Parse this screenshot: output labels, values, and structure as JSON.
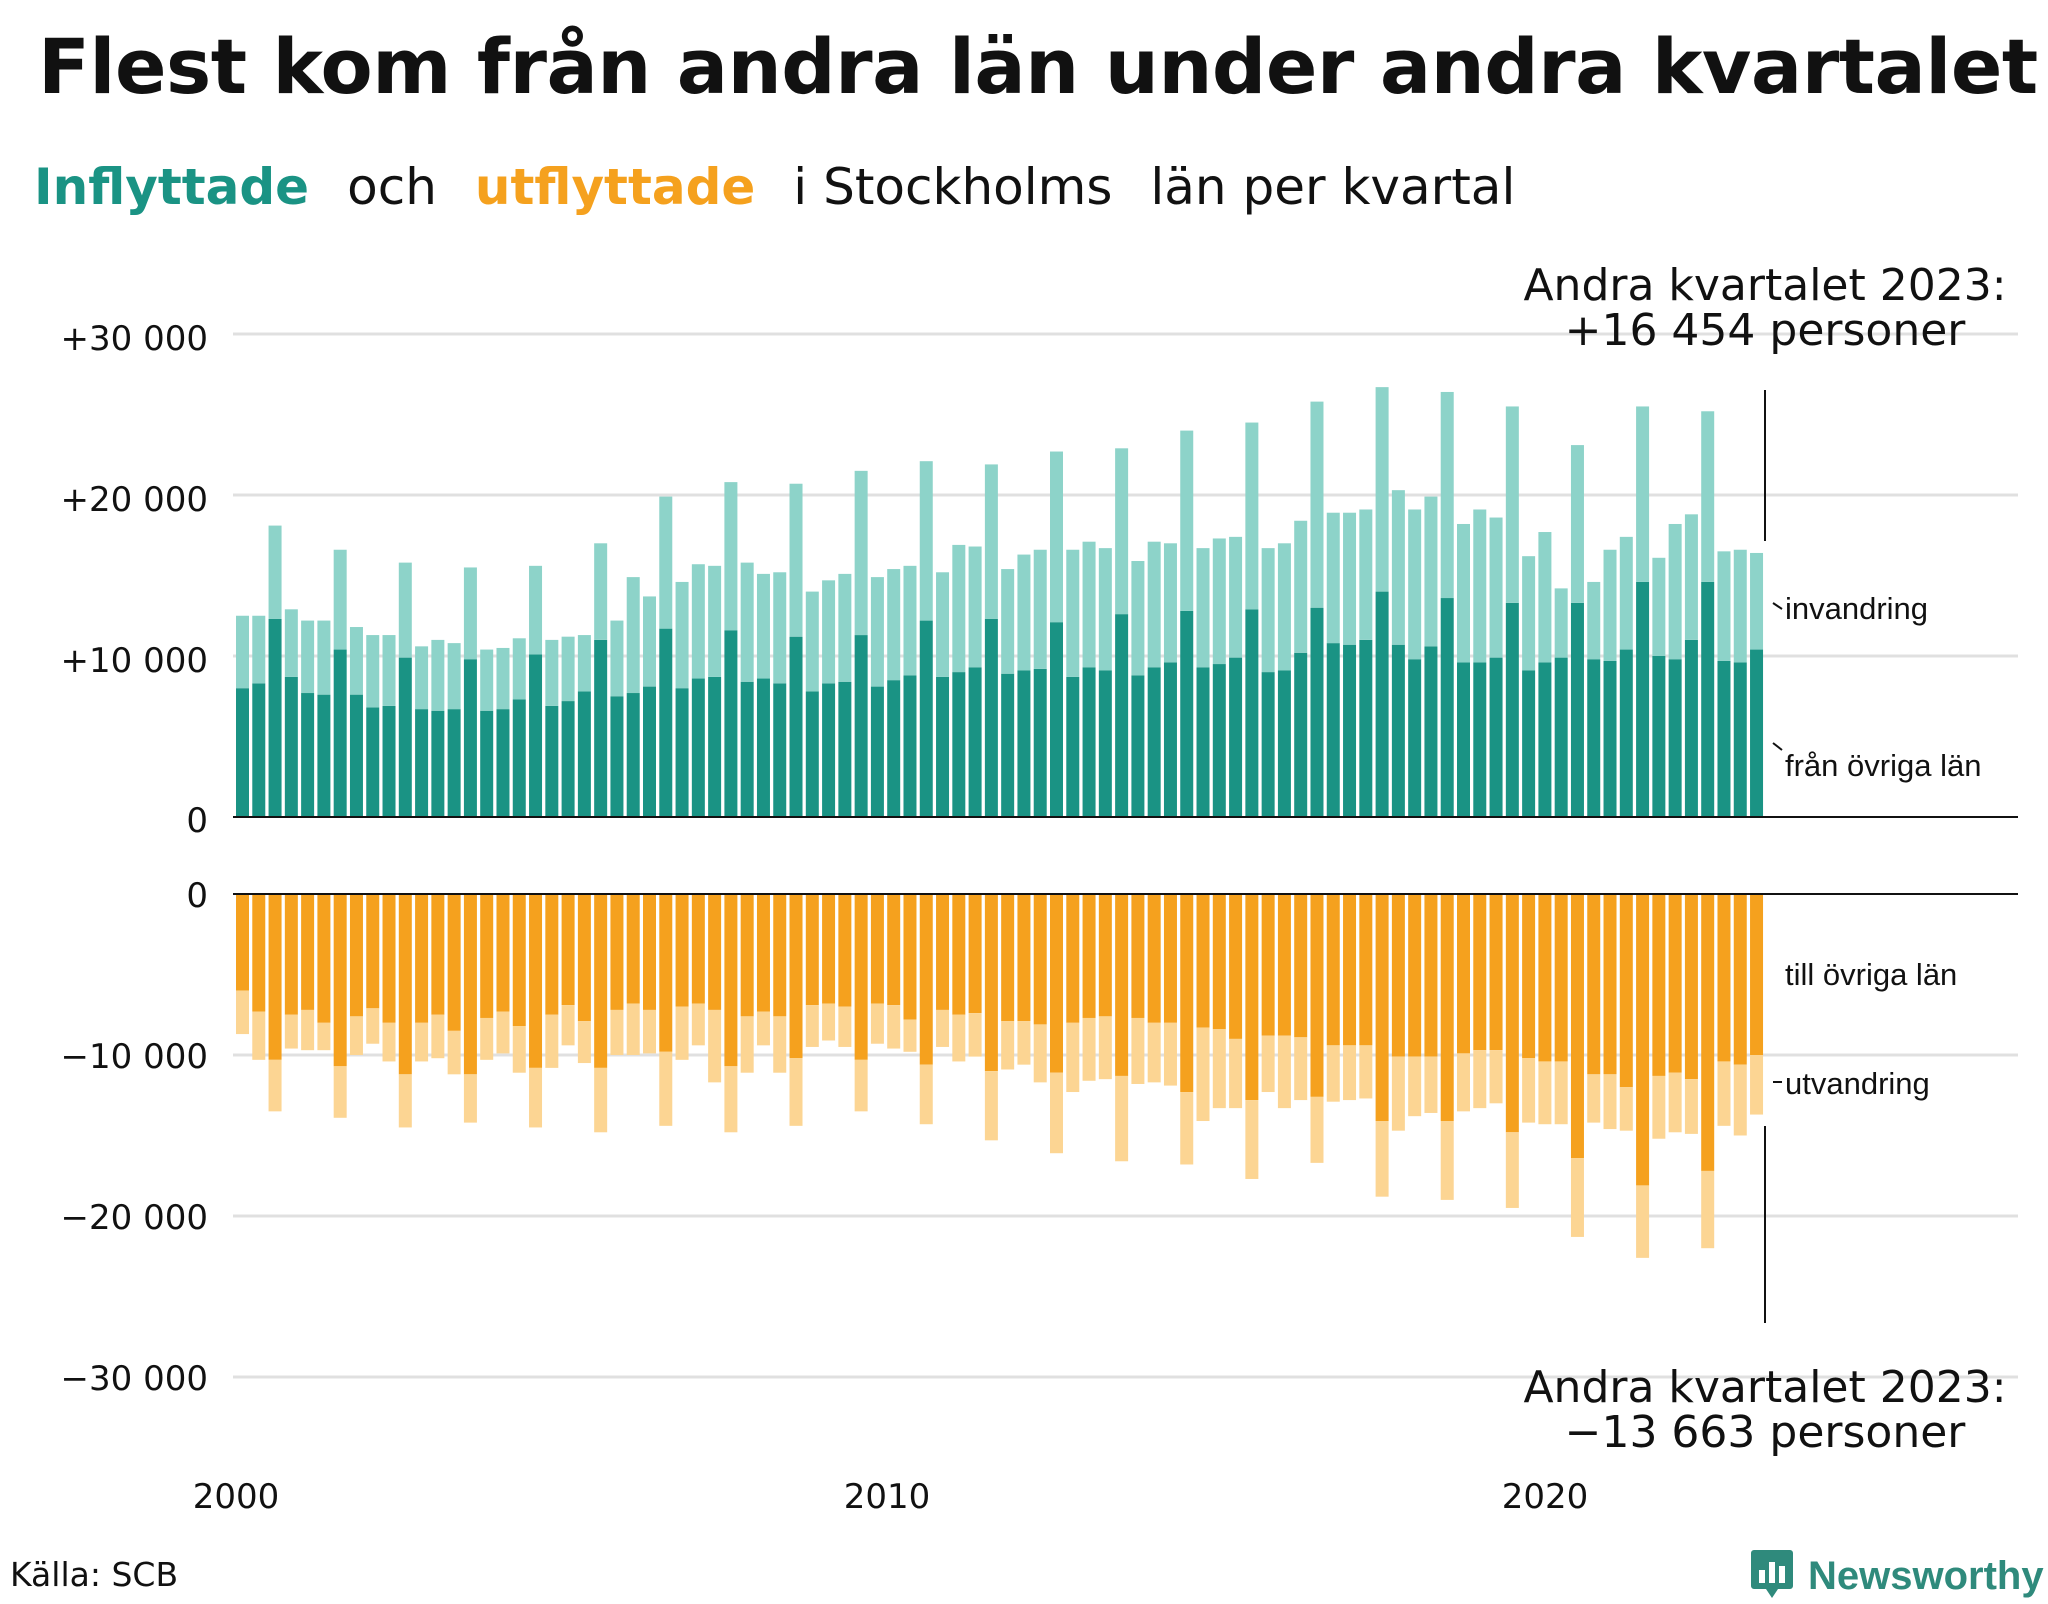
{
  "title": "Flest kom från andra län under andra kvartalet",
  "subtitle": {
    "part1": "Inflyttade",
    "part2": "och",
    "part3": "utflyttade",
    "part4": "i Stockholms",
    "part5": "län per kvartal"
  },
  "annotations": {
    "top_line1": "Andra kvartalet 2023:",
    "top_line2": "+16 454 personer",
    "bottom_line1": "Andra kvartalet 2023:",
    "bottom_line2": "−13 663 personer"
  },
  "source": "Källa: SCB",
  "brand": "Newsworthy",
  "colors": {
    "in_domestic": "#1a9384",
    "in_immigration": "#8dd3c9",
    "out_domestic": "#f5a11e",
    "out_emigration": "#fcd593",
    "grid": "#e0e0e0"
  },
  "chart_data": {
    "type": "bar",
    "stacked": true,
    "x_start": "2000 Q1",
    "x_tick_labels": [
      "2000",
      "2010",
      "2020"
    ],
    "top_panel": {
      "y_ticks": [
        "+30 000",
        "+20 000",
        "+10 000",
        "0"
      ],
      "ylim": [
        0,
        30000
      ],
      "series": [
        {
          "name": "från övriga län",
          "values": [
            8000,
            8300,
            12300,
            8700,
            7700,
            7600,
            10400,
            7600,
            6800,
            6900,
            9900,
            6700,
            6600,
            6700,
            9800,
            6600,
            6700,
            7300,
            10100,
            6900,
            7200,
            7800,
            11000,
            7500,
            7700,
            8100,
            11700,
            8000,
            8600,
            8700,
            11600,
            8400,
            8600,
            8300,
            11200,
            7800,
            8300,
            8400,
            11300,
            8100,
            8500,
            8800,
            12200,
            8700,
            9000,
            9300,
            12300,
            8900,
            9100,
            9200,
            12100,
            8700,
            9300,
            9100,
            12600,
            8800,
            9300,
            9600,
            12800,
            9300,
            9500,
            9900,
            12900,
            9000,
            9100,
            10200,
            13000,
            10800,
            10700,
            11000,
            14000,
            10700,
            9800,
            10600,
            13600,
            9600,
            9600,
            9900,
            13300,
            9100,
            9600,
            9900,
            13300,
            9800,
            9700,
            10400,
            14600,
            10000,
            9800,
            11000,
            14600,
            9700,
            9600,
            10400
          ]
        },
        {
          "name": "invandring",
          "values": [
            4500,
            4200,
            5800,
            4200,
            4500,
            4600,
            6200,
            4200,
            4500,
            4400,
            5900,
            3900,
            4400,
            4100,
            5700,
            3800,
            3800,
            3800,
            5500,
            4100,
            4000,
            3500,
            6000,
            4700,
            7200,
            5600,
            8200,
            6600,
            7100,
            6900,
            9200,
            7400,
            6500,
            6900,
            9500,
            6200,
            6400,
            6700,
            10200,
            6800,
            6900,
            6800,
            9900,
            6500,
            7900,
            7500,
            9600,
            6500,
            7200,
            7400,
            10600,
            7900,
            7800,
            7600,
            10300,
            7100,
            7800,
            7400,
            11200,
            7400,
            7800,
            7500,
            11600,
            7700,
            7900,
            8200,
            12800,
            8100,
            8200,
            8100,
            12700,
            9600,
            9300,
            9300,
            12800,
            8600,
            9500,
            8700,
            12200,
            7100,
            8100,
            4300,
            9800,
            4800,
            6900,
            7000,
            10900,
            6100,
            8400,
            7800,
            10600,
            6800,
            7000,
            6000
          ]
        }
      ],
      "inline_labels": [
        "invandring",
        "från övriga län"
      ]
    },
    "bottom_panel": {
      "y_ticks": [
        "0",
        "−10 000",
        "−20 000",
        "−30 000"
      ],
      "ylim": [
        -30000,
        0
      ],
      "series": [
        {
          "name": "till övriga län",
          "values": [
            -6000,
            -7300,
            -10300,
            -7500,
            -7200,
            -8000,
            -10700,
            -7600,
            -7100,
            -8000,
            -11200,
            -8000,
            -7500,
            -8500,
            -11200,
            -7700,
            -7300,
            -8200,
            -10800,
            -7500,
            -6900,
            -7900,
            -10800,
            -7200,
            -6800,
            -7200,
            -9800,
            -7000,
            -6800,
            -7200,
            -10700,
            -7600,
            -7300,
            -7600,
            -10200,
            -6900,
            -6800,
            -7000,
            -10300,
            -6800,
            -6900,
            -7800,
            -10600,
            -7200,
            -7500,
            -7400,
            -11000,
            -7900,
            -7900,
            -8100,
            -11100,
            -8000,
            -7700,
            -7600,
            -11300,
            -7700,
            -8000,
            -8000,
            -12300,
            -8300,
            -8400,
            -9000,
            -12800,
            -8800,
            -8800,
            -8900,
            -12600,
            -9400,
            -9400,
            -9400,
            -14100,
            -10100,
            -10100,
            -10100,
            -14100,
            -9900,
            -9700,
            -9700,
            -14800,
            -10200,
            -10400,
            -10400,
            -16400,
            -11200,
            -11200,
            -12000,
            -18100,
            -11300,
            -11100,
            -11500,
            -17200,
            -10400,
            -10600,
            -10000
          ]
        },
        {
          "name": "utvandring",
          "values": [
            -2700,
            -3000,
            -3200,
            -2100,
            -2500,
            -1700,
            -3200,
            -2400,
            -2200,
            -2400,
            -3300,
            -2400,
            -2700,
            -2700,
            -3000,
            -2600,
            -2600,
            -2900,
            -3700,
            -3300,
            -2500,
            -2600,
            -4000,
            -2800,
            -3200,
            -2700,
            -4600,
            -3300,
            -2600,
            -4500,
            -4100,
            -3500,
            -2100,
            -3500,
            -4200,
            -2600,
            -2300,
            -2500,
            -3200,
            -2500,
            -2700,
            -2000,
            -3700,
            -2300,
            -2900,
            -2700,
            -4300,
            -3000,
            -2700,
            -3600,
            -5000,
            -4300,
            -3900,
            -3900,
            -5300,
            -4100,
            -3700,
            -3900,
            -4500,
            -5800,
            -4900,
            -4300,
            -4900,
            -3500,
            -4500,
            -3900,
            -4100,
            -3500,
            -3400,
            -3300,
            -4700,
            -4600,
            -3700,
            -3500,
            -4900,
            -3600,
            -3600,
            -3300,
            -4700,
            -4000,
            -3900,
            -3900,
            -4900,
            -3000,
            -3400,
            -2700,
            -4500,
            -3900,
            -3700,
            -3400,
            -4800,
            -4000,
            -4400,
            -3700
          ]
        }
      ],
      "inline_labels": [
        "till övriga län",
        "utvandring"
      ]
    }
  }
}
